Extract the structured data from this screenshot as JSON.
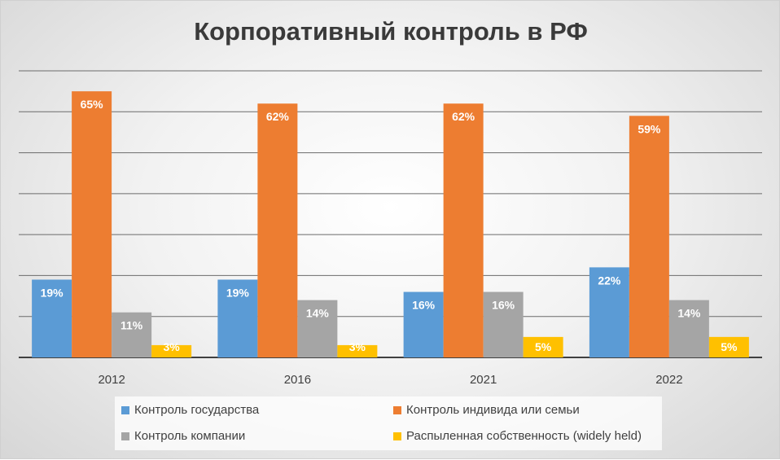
{
  "chart_data": {
    "type": "bar",
    "title": "Корпоративный контроль в РФ",
    "categories": [
      "2012",
      "2016",
      "2021",
      "2022"
    ],
    "ylim": [
      0,
      70
    ],
    "grid": true,
    "legend_position": "bottom",
    "series": [
      {
        "name": "Контроль государства",
        "color": "#5b9bd5",
        "values": [
          19,
          19,
          16,
          22
        ],
        "labels": [
          "19%",
          "19%",
          "16%",
          "22%"
        ]
      },
      {
        "name": "Контроль индивида или семьи",
        "color": "#ed7d31",
        "values": [
          65,
          62,
          62,
          59
        ],
        "labels": [
          "65%",
          "62%",
          "62%",
          "59%"
        ]
      },
      {
        "name": "Контроль компании",
        "color": "#a5a5a5",
        "values": [
          11,
          14,
          16,
          14
        ],
        "labels": [
          "11%",
          "14%",
          "16%",
          "14%"
        ]
      },
      {
        "name": "Распыленная собственность (widely held)",
        "color": "#ffc000",
        "values": [
          3,
          3,
          5,
          5
        ],
        "labels": [
          "3%",
          "3%",
          "5%",
          "5%"
        ]
      }
    ]
  }
}
